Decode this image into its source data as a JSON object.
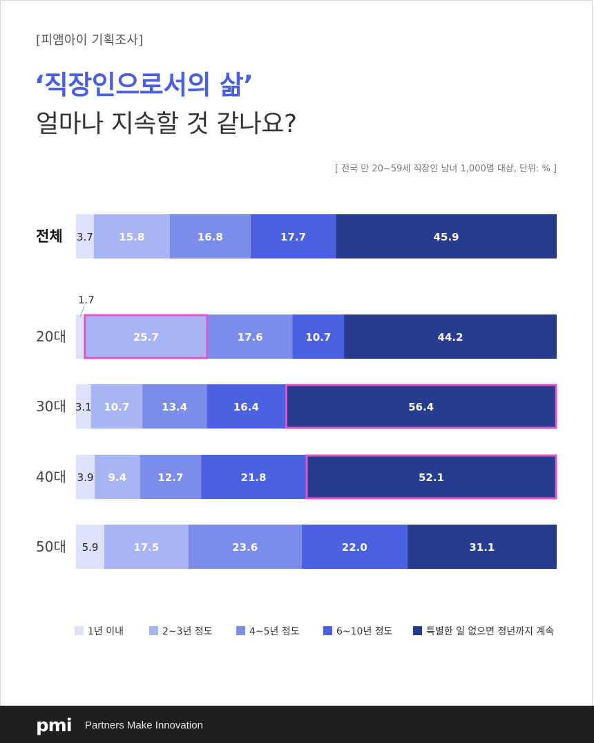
{
  "header": {
    "tag": "[피앰아이 기획조사]",
    "title_line1": "‘직장인으로서의 삶’",
    "title_line2": "얼마나 지속할 것 같나요?",
    "note": "[ 전국 만 20~59세 직장인 남녀 1,000명 대상, 단위: % ]"
  },
  "footer": {
    "logo": "pmi",
    "tagline": "Partners Make Innovation"
  },
  "chart_data": {
    "type": "bar",
    "orientation": "horizontal-stacked-100",
    "categories": [
      "전체",
      "20대",
      "30대",
      "40대",
      "50대"
    ],
    "series": [
      {
        "name": "1년 이내",
        "color": "#dde2fb",
        "values": [
          3.7,
          1.7,
          3.1,
          3.9,
          5.9
        ]
      },
      {
        "name": "2~3년 정도",
        "color": "#a9b5f3",
        "values": [
          15.8,
          25.7,
          10.7,
          9.4,
          17.5
        ]
      },
      {
        "name": "4~5년 정도",
        "color": "#7b8de8",
        "values": [
          16.8,
          17.6,
          13.4,
          12.7,
          23.6
        ]
      },
      {
        "name": "6~10년 정도",
        "color": "#4a61e0",
        "values": [
          17.7,
          10.7,
          16.4,
          21.8,
          22.0
        ]
      },
      {
        "name": "특별한 일 없으면 정년까지 계속",
        "color": "#263c8f",
        "values": [
          45.9,
          44.2,
          56.4,
          52.1,
          31.1
        ]
      }
    ],
    "highlights": [
      {
        "category": "20대",
        "series": "2~3년 정도"
      },
      {
        "category": "30대",
        "series": "특별한 일 없으면 정년까지 계속"
      },
      {
        "category": "40대",
        "series": "특별한 일 없으면 정년까지 계속"
      }
    ],
    "highlight_color": "#e056c8",
    "legend_position": "bottom",
    "grid": false
  }
}
